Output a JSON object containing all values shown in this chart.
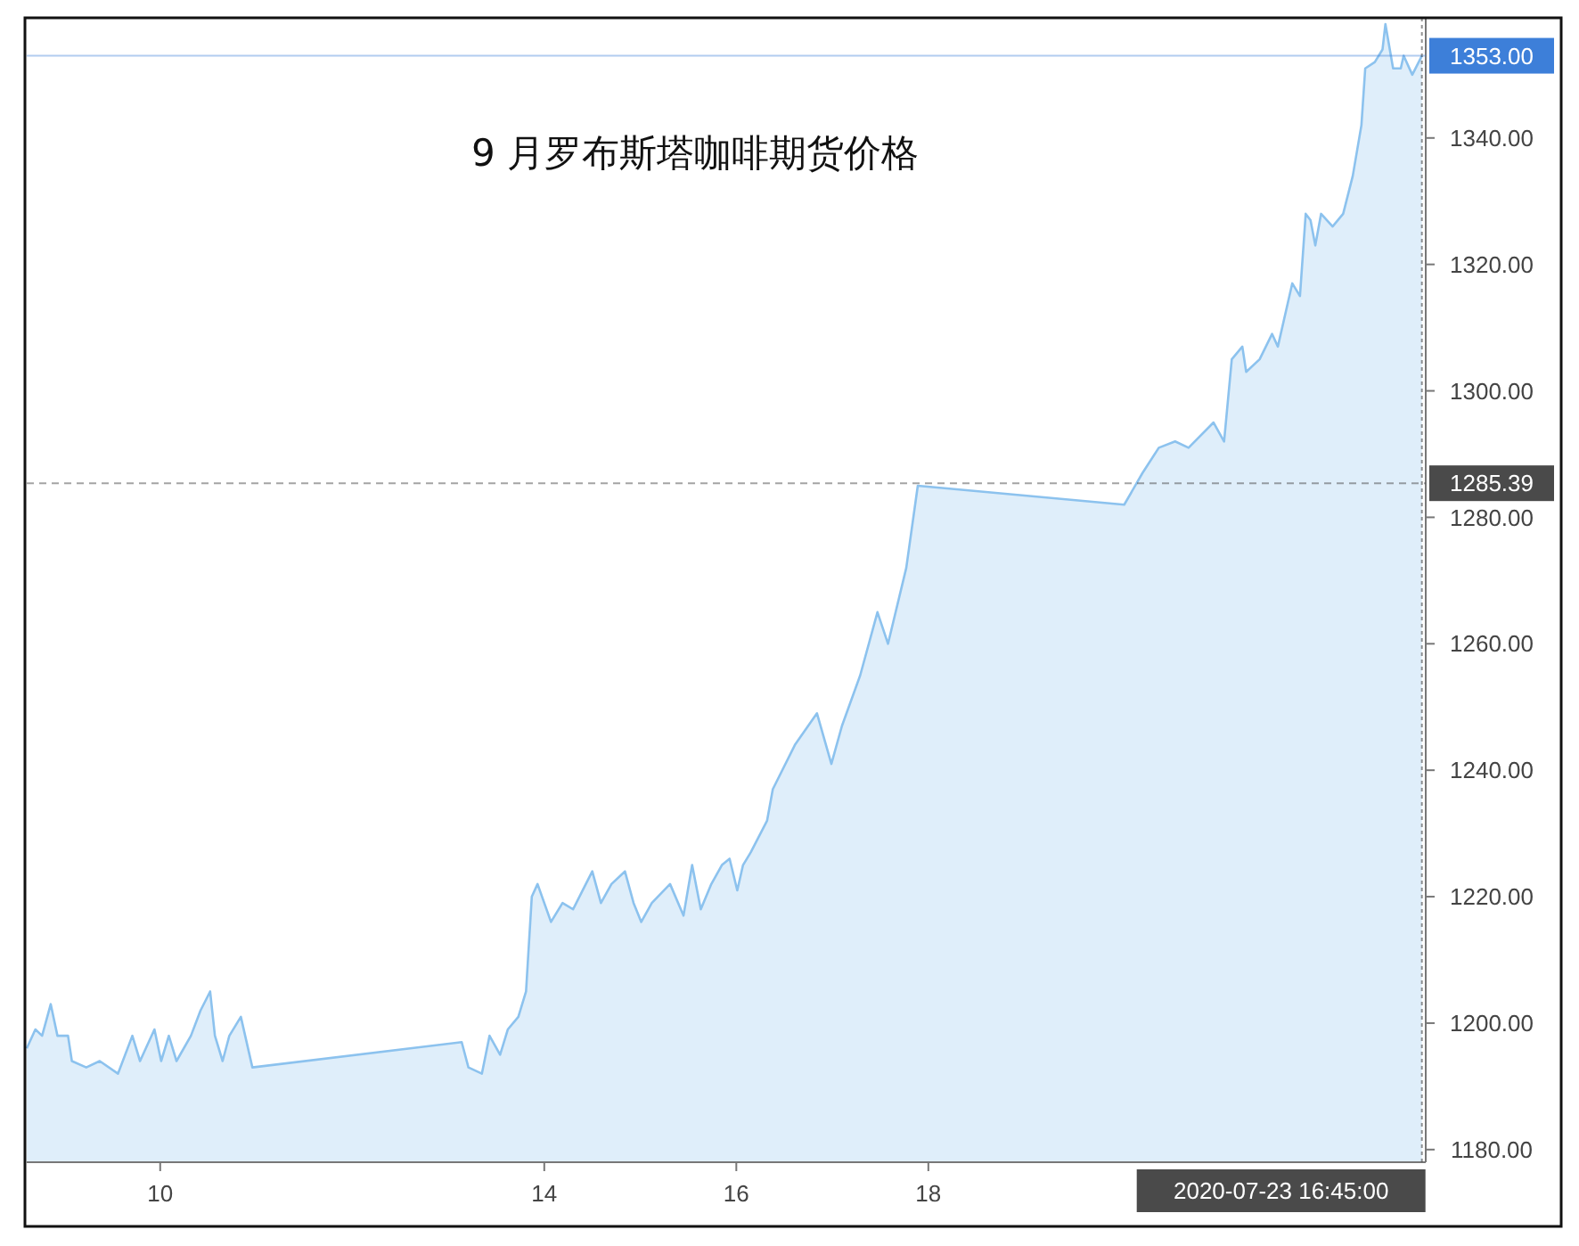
{
  "chart_data": {
    "type": "area",
    "title": "9 月罗布斯塔咖啡期货价格",
    "xlim": [
      8.61,
      23.18
    ],
    "ylim": [
      1178,
      1359
    ],
    "xticks": [
      10,
      14,
      16,
      18
    ],
    "yticks": [
      {
        "value": 1180,
        "label": "1180.00"
      },
      {
        "value": 1200,
        "label": "1200.00"
      },
      {
        "value": 1220,
        "label": "1220.00"
      },
      {
        "value": 1240,
        "label": "1240.00"
      },
      {
        "value": 1260,
        "label": "1260.00"
      },
      {
        "value": 1280,
        "label": "1280.00"
      },
      {
        "value": 1300,
        "label": "1300.00"
      },
      {
        "value": 1320,
        "label": "1320.00"
      },
      {
        "value": 1340,
        "label": "1340.00"
      }
    ],
    "grid": false,
    "annotations": [
      "2020-07-23 16:45:00"
    ],
    "x": [
      8.61,
      8.7,
      8.77,
      8.86,
      8.93,
      9.04,
      9.08,
      9.23,
      9.37,
      9.56,
      9.71,
      9.79,
      9.94,
      10.01,
      10.09,
      10.17,
      10.32,
      10.42,
      10.52,
      10.57,
      10.65,
      10.72,
      10.84,
      10.96,
      13.14,
      13.21,
      13.35,
      13.43,
      13.54,
      13.62,
      13.73,
      13.81,
      13.87,
      13.93,
      14.07,
      14.19,
      14.3,
      14.4,
      14.5,
      14.59,
      14.7,
      14.84,
      14.93,
      15.01,
      15.12,
      15.31,
      15.45,
      15.54,
      15.63,
      15.74,
      15.85,
      15.93,
      16.01,
      16.07,
      16.15,
      16.32,
      16.38,
      16.61,
      16.84,
      16.99,
      17.1,
      17.29,
      17.47,
      17.58,
      17.77,
      17.89,
      20.04,
      20.23,
      20.4,
      20.57,
      20.71,
      20.97,
      21.08,
      21.16,
      21.27,
      21.31,
      21.45,
      21.58,
      21.64,
      21.79,
      21.87,
      21.93,
      21.98,
      22.03,
      22.09,
      22.21,
      22.32,
      22.42,
      22.51,
      22.55,
      22.65,
      22.73,
      22.76,
      22.84,
      22.92,
      22.95,
      23.04,
      23.14
    ],
    "series": [
      {
        "color": "#8cc2ee",
        "values": [
          1196,
          1199,
          1198,
          1203,
          1198,
          1198,
          1194,
          1193,
          1194,
          1192,
          1198,
          1194,
          1199,
          1194,
          1198,
          1194,
          1198,
          1202,
          1205,
          1198,
          1194,
          1198,
          1201,
          1193,
          1197,
          1193,
          1192,
          1198,
          1195,
          1199,
          1201,
          1205,
          1220,
          1222,
          1216,
          1219,
          1218,
          1221,
          1224,
          1219,
          1222,
          1224,
          1219,
          1216,
          1219,
          1222,
          1217,
          1225,
          1218,
          1222,
          1225,
          1226,
          1221,
          1225,
          1227,
          1232,
          1237,
          1244,
          1249,
          1241,
          1247,
          1255,
          1265,
          1260,
          1272,
          1285,
          1282,
          1287,
          1291,
          1292,
          1291,
          1295,
          1292,
          1305,
          1307,
          1303,
          1305,
          1309,
          1307,
          1317,
          1315,
          1328,
          1327,
          1323,
          1328,
          1326,
          1328,
          1334,
          1342,
          1351,
          1352,
          1354,
          1358,
          1351,
          1351,
          1353,
          1350,
          1353
        ]
      }
    ],
    "ref_lines": [
      {
        "axis": "y",
        "value": 1353,
        "label": "1353.00",
        "color": "#3d7fd9",
        "line_style": "solid"
      },
      {
        "axis": "y",
        "value": 1285.39,
        "label": "1285.39",
        "color": "#4a4a4a",
        "line_style": "dashed"
      },
      {
        "axis": "x",
        "value": 23.14,
        "color": "#4a4a4a",
        "line_style": "dotted"
      }
    ]
  }
}
